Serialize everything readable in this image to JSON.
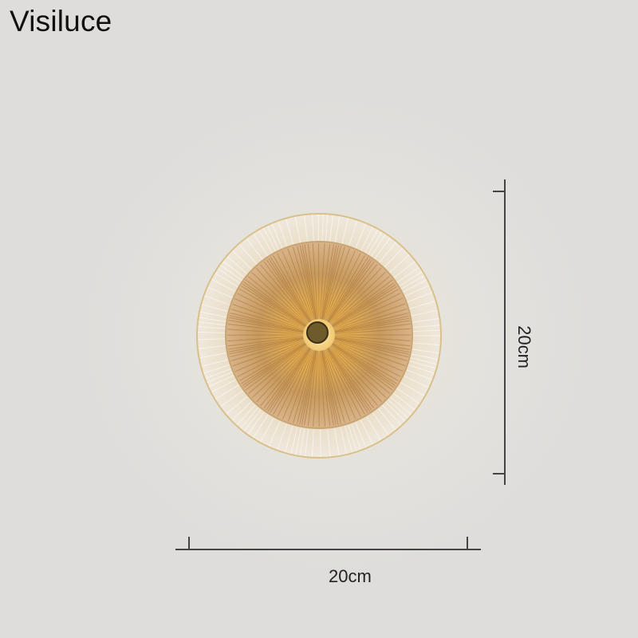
{
  "brand": "Visiluce",
  "dimensions": {
    "width_label": "20cm",
    "height_label": "20cm"
  },
  "colors": {
    "background": "#e2e1de",
    "amber": "#c8913e",
    "glow": "#ffd27a",
    "line": "#444444"
  }
}
